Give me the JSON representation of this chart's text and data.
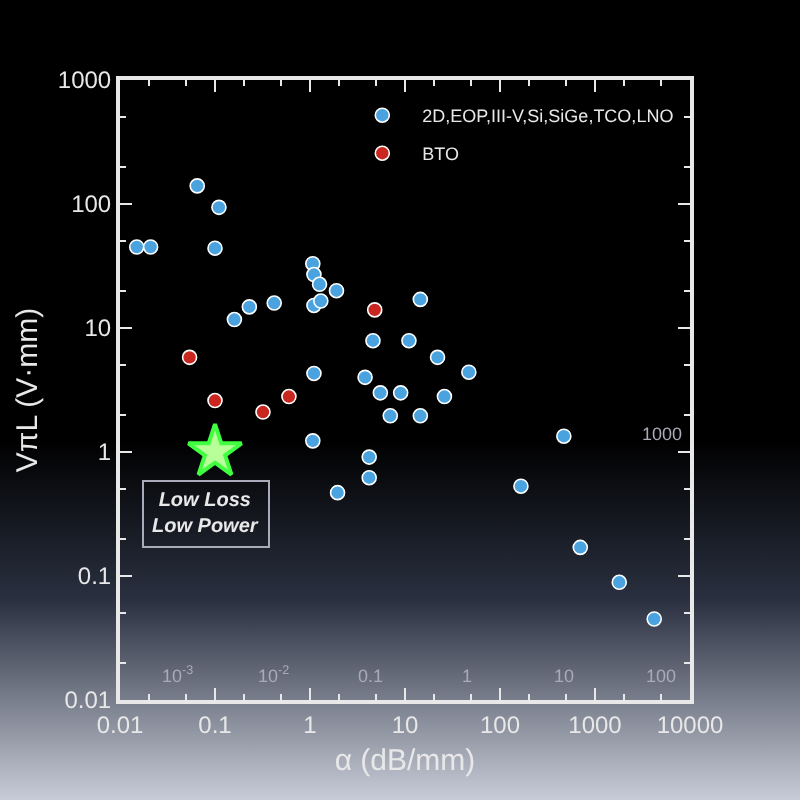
{
  "chart_data": {
    "type": "scatter",
    "xlabel": "α (dB/mm)",
    "ylabel": "VπL (V·mm)",
    "log": "xy",
    "xlim": [
      0.01,
      10000
    ],
    "xticks": [
      0.01,
      0.1,
      1,
      10,
      100,
      1000,
      10000
    ],
    "ylim": [
      0.01,
      1000
    ],
    "yticks": [
      0.01,
      0.1,
      1,
      10,
      100,
      1000
    ],
    "legend": "top right",
    "marker": "circle",
    "grid": false,
    "annotations": [
      "Low Loss\nLow Power",
      "10$^{-3}$",
      "10$^{-2}$",
      "0.1",
      "1",
      "10",
      "100",
      "1000"
    ],
    "series": [
      {
        "name": "2D,EOP,III-V,Si,SiGe,TCO,LNO",
        "color": "#4aa3df",
        "x": [
          0.015,
          0.021,
          0.065,
          0.11,
          0.1,
          0.16,
          0.23,
          0.42,
          1.07,
          1.1,
          1.26,
          1.1,
          1.3,
          1.9,
          1.1,
          1.07,
          4.6,
          11,
          3.8,
          5.5,
          9,
          7,
          14.5,
          22,
          47,
          26,
          14.5,
          470,
          1.95,
          4.2,
          4.2,
          166,
          700,
          1800,
          4200
        ],
        "values": [
          45,
          45,
          140,
          94,
          44,
          11.7,
          14.8,
          15.9,
          33,
          27,
          22.5,
          15.2,
          16.5,
          20,
          4.3,
          1.23,
          7.9,
          7.9,
          4.0,
          3.0,
          3.0,
          1.96,
          17,
          5.8,
          4.4,
          2.8,
          1.96,
          1.34,
          0.47,
          0.91,
          0.62,
          0.53,
          0.17,
          0.089,
          0.045
        ]
      },
      {
        "name": "BTO",
        "color": "#c8261e",
        "x": [
          0.054,
          0.1,
          0.32,
          0.6,
          4.8
        ],
        "values": [
          5.8,
          2.6,
          2.1,
          2.8,
          14
        ]
      },
      {
        "color": "#b8ff9a",
        "marker": "star",
        "x": [
          0.1
        ],
        "values": [
          1.0
        ]
      }
    ]
  }
}
